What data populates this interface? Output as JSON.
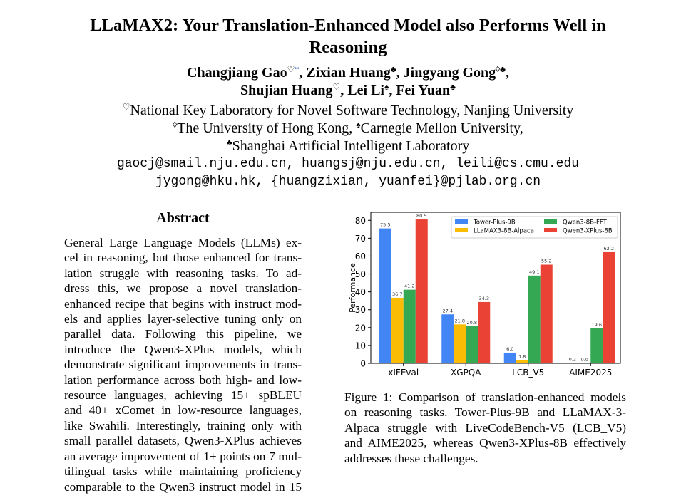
{
  "paper": {
    "title_lines": [
      "LLaMAX2: Your Translation-Enhanced Model also Performs Well in",
      "Reasoning"
    ],
    "authors": [
      [
        {
          "name": "Changjiang Gao",
          "mark": "♡",
          "extra": "*"
        },
        {
          "name": ", Zixian Huang",
          "mark": "♣"
        },
        {
          "name": ", Jingyang Gong",
          "mark": "◊♣"
        },
        {
          "name": ",",
          "mark": ""
        }
      ],
      [
        {
          "name": "Shujian Huang",
          "mark": "♡"
        },
        {
          "name": ", Lei Li",
          "mark": "♠"
        },
        {
          "name": ", Fei Yuan",
          "mark": "♣"
        }
      ]
    ],
    "affiliations": [
      {
        "mark": "♡",
        "text": "National Key Laboratory for Novel Software Technology, Nanjing University"
      },
      {
        "mark": "◊",
        "text": "The University of Hong Kong, ",
        "mark2": "♠",
        "text2": "Carnegie Mellon University,"
      },
      {
        "mark": "♣",
        "text": "Shanghai Artificial Intelligent Laboratory"
      }
    ],
    "emails": [
      "gaocj@smail.nju.edu.cn, huangsj@nju.edu.cn, leili@cs.cmu.edu",
      "jygong@hku.hk, {huangzixian, yuanfei}@pjlab.org.cn"
    ],
    "abstract_heading": "Abstract",
    "abstract_lines": [
      "General Large Language Models (LLMs) ex-",
      "cel in reasoning, but those enhanced for trans-",
      "lation struggle with reasoning tasks.  To ad-",
      "dress this, we propose a novel translation-",
      "enhanced recipe that begins with instruct mod-",
      "els and applies layer-selective tuning only on",
      "parallel data.  Following this pipeline, we",
      "introduce the Qwen3-XPlus models, which",
      "demonstrate significant improvements in trans-",
      "lation performance across both high- and low-",
      "resource languages, achieving 15+ spBLEU",
      "and 40+ xComet in low-resource languages,",
      "like Swahili. Interestingly, training only with",
      "small parallel datasets, Qwen3-XPlus achieves",
      "an average improvement of 1+ points on 7 mul-",
      "tilingual tasks while maintaining proficiency",
      "comparable to the Qwen3 instruct model in 15"
    ],
    "caption_lines": [
      "Figure 1: Comparison of translation-enhanced models",
      "on reasoning tasks.  Tower-Plus-9B and LLaMAX-3-",
      "Alpaca struggle with LiveCodeBench-V5 (LCB_V5)",
      "and AIME2025, whereas Qwen3-XPlus-8B effectively",
      "addresses these challenges."
    ]
  },
  "chart_data": {
    "type": "bar",
    "categories": [
      "xIFEval",
      "XGPQA",
      "LCB_V5",
      "AIME2025"
    ],
    "series": [
      {
        "name": "Tower-Plus-9B",
        "color": "#4285f4",
        "values": [
          75.5,
          27.4,
          6.0,
          0.2
        ],
        "labels": [
          "75.5",
          "27.4",
          "6.0",
          "0.2"
        ]
      },
      {
        "name": "LLaMAX3-8B-Alpaca",
        "color": "#fbbc05",
        "values": [
          36.7,
          21.8,
          1.8,
          0.0
        ],
        "labels": [
          "36.7",
          "21.8",
          "1.8",
          "0.0"
        ]
      },
      {
        "name": "Qwen3-8B-FFT",
        "color": "#34a853",
        "values": [
          41.2,
          20.8,
          49.1,
          19.6
        ],
        "labels": [
          "41.2",
          "20.8",
          "49.1",
          "19.6"
        ]
      },
      {
        "name": "Qwen3-XPlus-8B",
        "color": "#ea4335",
        "values": [
          80.5,
          34.3,
          55.2,
          62.2
        ],
        "labels": [
          "80.5",
          "34.3",
          "55.2",
          "62.2"
        ]
      }
    ],
    "ylabel": "Performance",
    "xlabel": "",
    "ylim": [
      0,
      84.5
    ],
    "yticks": [
      "0",
      "10",
      "20",
      "30",
      "40",
      "50",
      "60",
      "70",
      "80"
    ],
    "legend": "top-right, 2 columns",
    "grid": false
  }
}
